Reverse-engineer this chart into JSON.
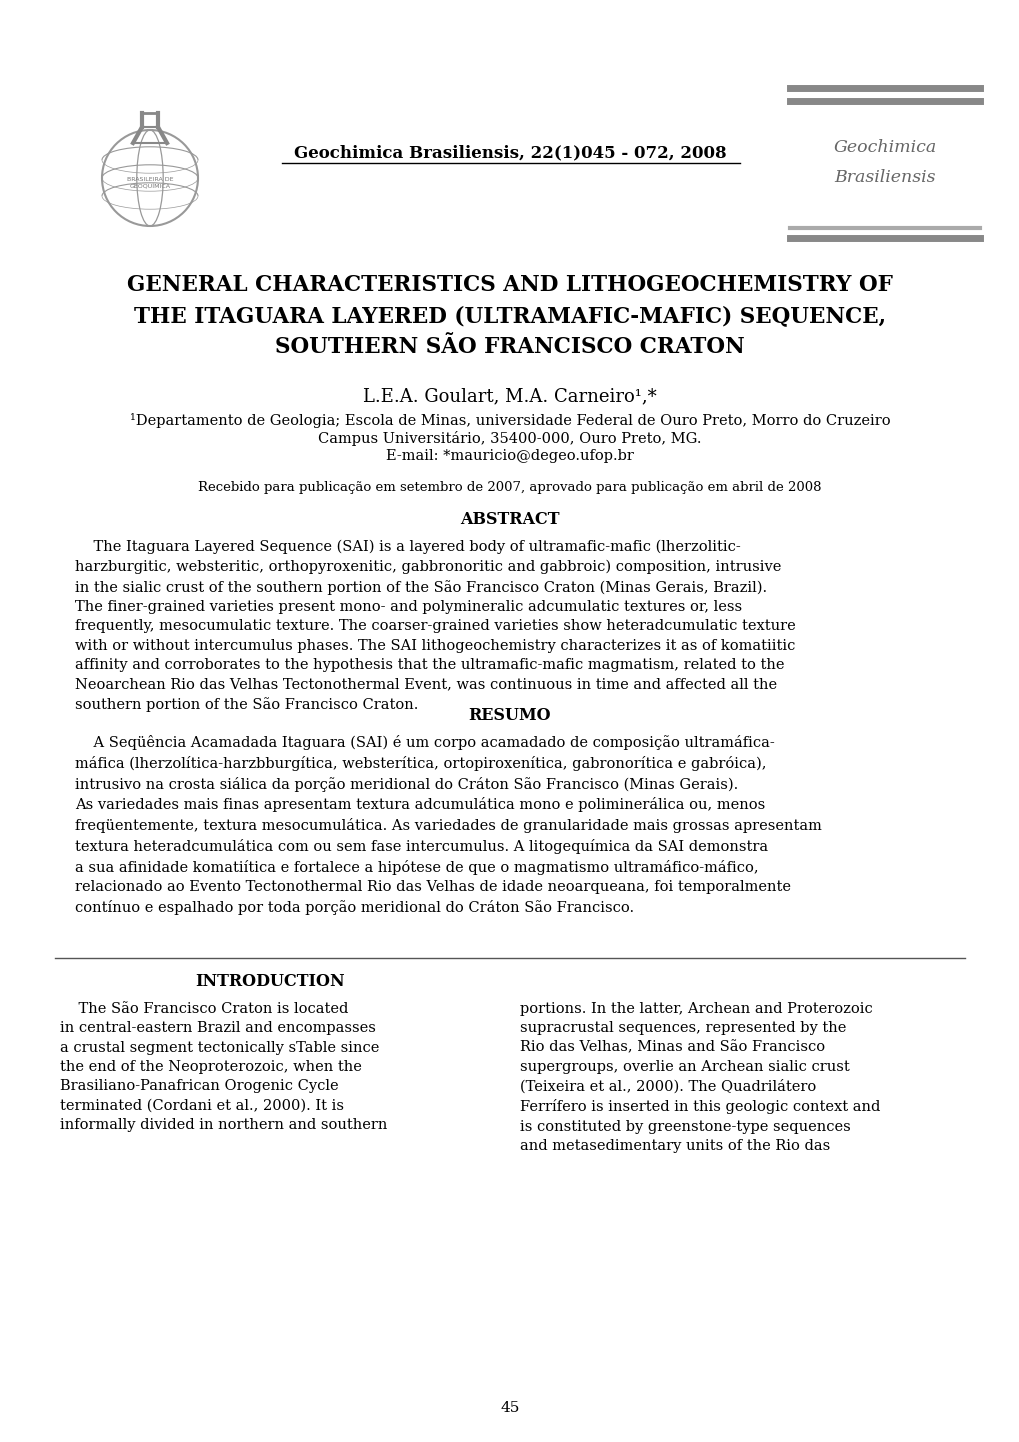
{
  "bg_color": "#ffffff",
  "journal_line": "Geochimica Brasiliensis, 22(1)045 - 072, 2008",
  "geo_right_line1": "Geochimica",
  "geo_right_line2": "Brasiliensis",
  "title_line1": "GENERAL CHARACTERISTICS AND LITHOGEOCHEMISTRY OF",
  "title_line2": "THE ITAGUARA LAYERED (ULTRAMAFIC-MAFIC) SEQUENCE,",
  "title_line3": "SOUTHERN SÃO FRANCISCO CRATON",
  "authors": "L.E.A. Goulart, M.A. Carneiro¹,*",
  "affil1": "¹Departamento de Geologia; Escola de Minas, universidade Federal de Ouro Preto, Morro do Cruzeiro",
  "affil2": "Campus Universitário, 35400-000, Ouro Preto, MG.",
  "affil3": "E-mail: *mauricio@degeo.ufop.br",
  "recebido": "Recebido para publicação em setembro de 2007, aprovado para publicação em abril de 2008",
  "abstract_title": "ABSTRACT",
  "abstract_body": "    The Itaguara Layered Sequence (SAI) is a layered body of ultramafic-mafic (lherzolitic-\nharzburgitic, websteritic, orthopyroxenitic, gabbronoritic and gabbroic) composition, intrusive\nin the sialic crust of the southern portion of the São Francisco Craton (Minas Gerais, Brazil).\nThe finer-grained varieties present mono- and polymineralic adcumulatic textures or, less\nfrequently, mesocumulatic texture. The coarser-grained varieties show heteradcumulatic texture\nwith or without intercumulus phases. The SAI lithogeochemistry characterizes it as of komatiitic\naffinity and corroborates to the hypothesis that the ultramafic-mafic magmatism, related to the\nNeoarchean Rio das Velhas Tectonothermal Event, was continuous in time and affected all the\nsouthern portion of the São Francisco Craton.",
  "resumo_title": "RESUMO",
  "resumo_body": "    A Seqüência Acamadada Itaguara (SAI) é um corpo acamadado de composição ultramáfica-\nmáfica (lherzolítica-harzbburgítica, websterítica, ortopiroxenítica, gabronorítica e gabróica),\nintrusivo na crosta siálica da porção meridional do Cráton São Francisco (Minas Gerais).\nAs variedades mais finas apresentam textura adcumulática mono e poliminerálica ou, menos\nfreqüentemente, textura mesocumulática. As variedades de granularidade mais grossas apresentam\ntextura heteradcumulática com ou sem fase intercumulus. A litogequímica da SAI demonstra\na sua afinidade komatiítica e fortalece a hipótese de que o magmatismo ultramáfico-máfico,\nrelacionado ao Evento Tectonothermal Rio das Velhas de idade neoarqueana, foi temporalmente\ncontínuo e espalhado por toda porção meridional do Cráton São Francisco.",
  "intro_title": "INTRODUCTION",
  "intro_col1": "    The São Francisco Craton is located\nin central-eastern Brazil and encompasses\na crustal segment tectonically sTable since\nthe end of the Neoproterozoic, when the\nBrasiliano-Panafrican Orogenic Cycle\nterminated (Cordani et al., 2000). It is\ninformally divided in northern and southern",
  "intro_col2": "portions. In the latter, Archean and Proterozoic\nsupracrustal sequences, represented by the\nRio das Velhas, Minas and São Francisco\nsupergroups, overlie an Archean sialic crust\n(Teixeira et al., 2000). The Quadrilátero\nFerrífero is inserted in this geologic context and\nis constituted by greenstone-type sequences\nand metasedimentary units of the Rio das",
  "page_number": "45",
  "bar_color_dark": "#888888",
  "bar_color_light": "#aaaaaa",
  "text_color_right": "#666666",
  "sep_line_color": "#555555"
}
